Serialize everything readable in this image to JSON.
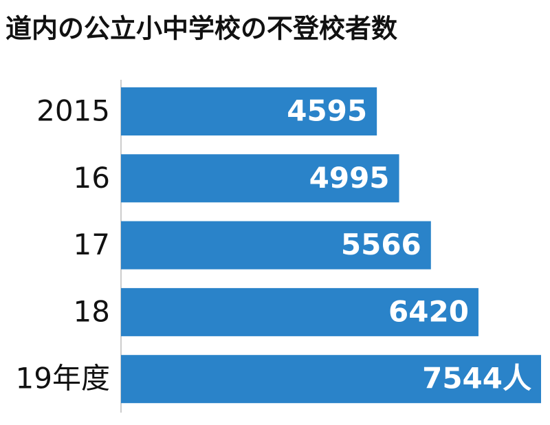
{
  "chart_data": {
    "type": "bar",
    "orientation": "horizontal",
    "title": "道内の公立小中学校の不登校者数",
    "categories": [
      "2015",
      "16",
      "17",
      "18",
      "19年度"
    ],
    "values": [
      4595,
      4995,
      5566,
      6420,
      7544
    ],
    "value_labels": [
      "4595",
      "4995",
      "5566",
      "6420",
      "7544人"
    ],
    "color": "#2a83c9"
  }
}
